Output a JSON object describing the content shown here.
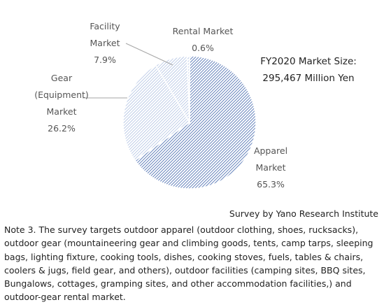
{
  "chart_data": {
    "type": "pie",
    "title": "",
    "total_label": [
      "FY2020 Market Size:",
      "295,467 Million Yen"
    ],
    "slices": [
      {
        "name": "Apparel Market",
        "label_lines": [
          "Apparel",
          "Market"
        ],
        "value": 65.3,
        "value_label": "65.3%",
        "color": "#5b7bb8"
      },
      {
        "name": "Gear (Equipment) Market",
        "label_lines": [
          "Gear",
          "(Equipment)",
          "Market"
        ],
        "value": 26.2,
        "value_label": "26.2%",
        "color": "#8ea7d6"
      },
      {
        "name": "Facility Market",
        "label_lines": [
          "Facility",
          "Market"
        ],
        "value": 7.9,
        "value_label": "7.9%",
        "color": "#8ea7d6"
      },
      {
        "name": "Rental Market",
        "label_lines": [
          "Rental Market"
        ],
        "value": 0.6,
        "value_label": "0.6%",
        "color": "#8ea7d6"
      }
    ]
  },
  "source": "Survey by Yano Research Institute",
  "note": "Note 3. The survey targets outdoor apparel (outdoor clothing, shoes, rucksacks), outdoor gear (mountaineering gear and climbing goods, tents, camp tarps, sleeping bags, lighting fixture, cooking tools, dishes, cooking stoves, fuels, tables & chairs, coolers & jugs, field gear, and others), outdoor facilities (camping sites, BBQ sites, Bungalows, cottages, gramping sites, and other accommodation facilities,) and outdoor-gear rental market."
}
